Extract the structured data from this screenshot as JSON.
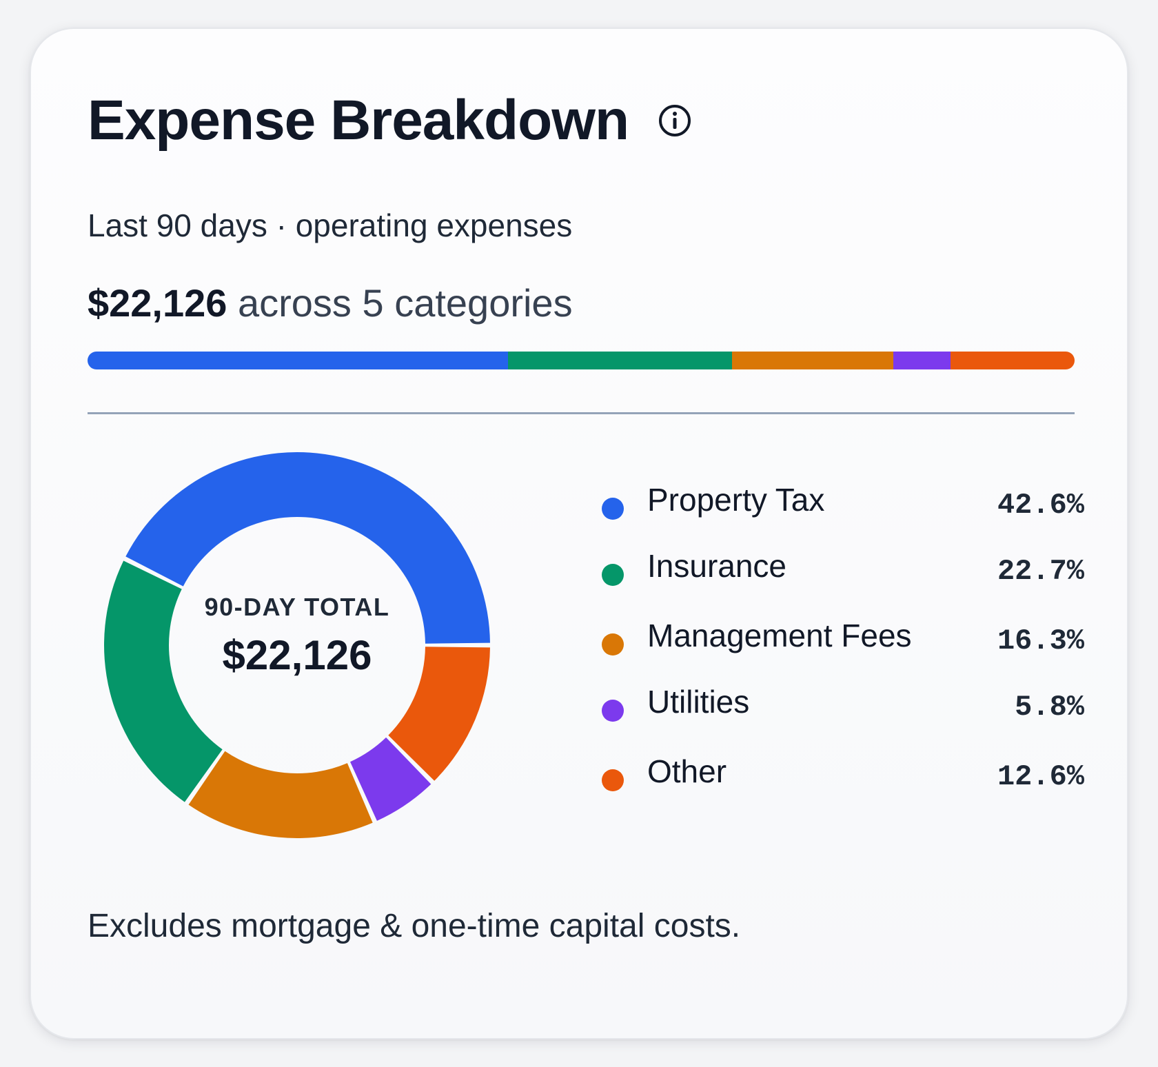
{
  "card": {
    "title": "Expense Breakdown",
    "subtitle": "Last 90 days · operating expenses",
    "total_amount": "$22,126",
    "total_suffix": " across 5 categories",
    "center_label": "90-DAY TOTAL",
    "center_value": "$22,126",
    "footnote": "Excludes mortgage & one-time capital costs.",
    "info_icon": "info-icon"
  },
  "chart_data": {
    "type": "pie",
    "donut": true,
    "categories": [
      "Property Tax",
      "Insurance",
      "Management Fees",
      "Utilities",
      "Other"
    ],
    "values": [
      42.6,
      22.7,
      16.3,
      5.8,
      12.6
    ],
    "value_labels": [
      "42.6%",
      "22.7%",
      "16.3%",
      "5.8%",
      "12.6%"
    ],
    "colors": [
      "#2563eb",
      "#059669",
      "#d97706",
      "#7c3aed",
      "#ea580c"
    ],
    "total": 22126,
    "legend_placement": "right"
  }
}
